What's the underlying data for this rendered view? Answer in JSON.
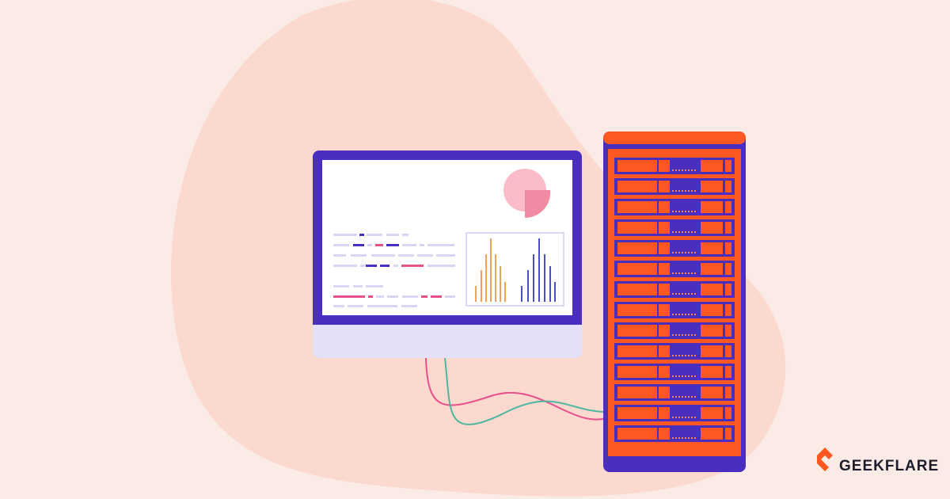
{
  "brand": {
    "name": "GEEKFLARE"
  }
}
